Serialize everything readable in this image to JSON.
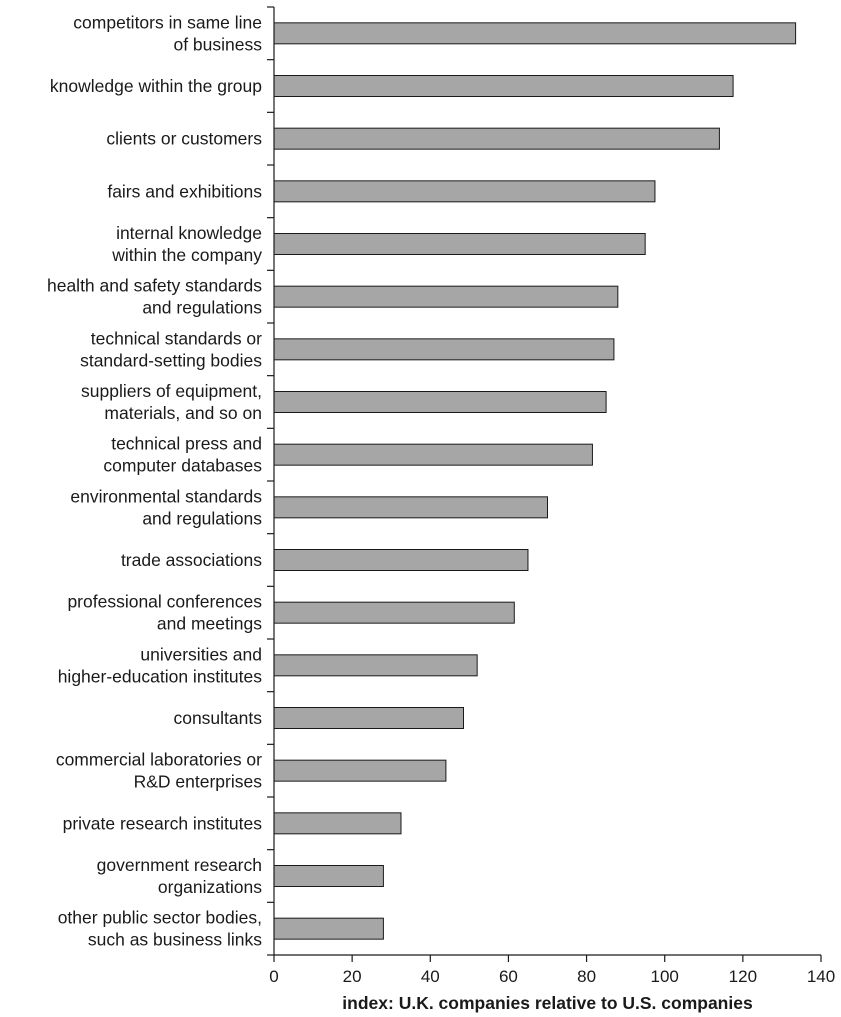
{
  "chart_data": {
    "type": "bar",
    "orientation": "horizontal",
    "categories": [
      [
        "competitors in same line",
        "of business"
      ],
      [
        "knowledge within the group"
      ],
      [
        "clients or customers"
      ],
      [
        "fairs and exhibitions"
      ],
      [
        "internal knowledge",
        "within the company"
      ],
      [
        "health and safety standards",
        "and regulations"
      ],
      [
        "technical standards or",
        "standard-setting bodies"
      ],
      [
        "suppliers of equipment,",
        "materials, and so on"
      ],
      [
        "technical press and",
        "computer databases"
      ],
      [
        "environmental standards",
        "and regulations"
      ],
      [
        "trade associations"
      ],
      [
        "professional conferences",
        "and meetings"
      ],
      [
        "universities and",
        "higher-education institutes"
      ],
      [
        "consultants"
      ],
      [
        "commercial laboratories or",
        "R&D enterprises"
      ],
      [
        "private research institutes"
      ],
      [
        "government research",
        "organizations"
      ],
      [
        "other public sector bodies,",
        "such as business links"
      ]
    ],
    "values": [
      133.5,
      117.5,
      114,
      97.5,
      95,
      88,
      87,
      85,
      81.5,
      70,
      65,
      61.5,
      52,
      48.5,
      44,
      32.5,
      28,
      28
    ],
    "xlabel": "index: U.K. companies relative to U.S. companies",
    "ylabel": "",
    "xlim": [
      0,
      140
    ],
    "xticks": [
      0,
      20,
      40,
      60,
      80,
      100,
      120,
      140
    ],
    "grid": false,
    "colors": {
      "bar_fill": "#a6a6a6",
      "bar_stroke": "#1a1a1a",
      "axis": "#1a1a1a"
    }
  }
}
